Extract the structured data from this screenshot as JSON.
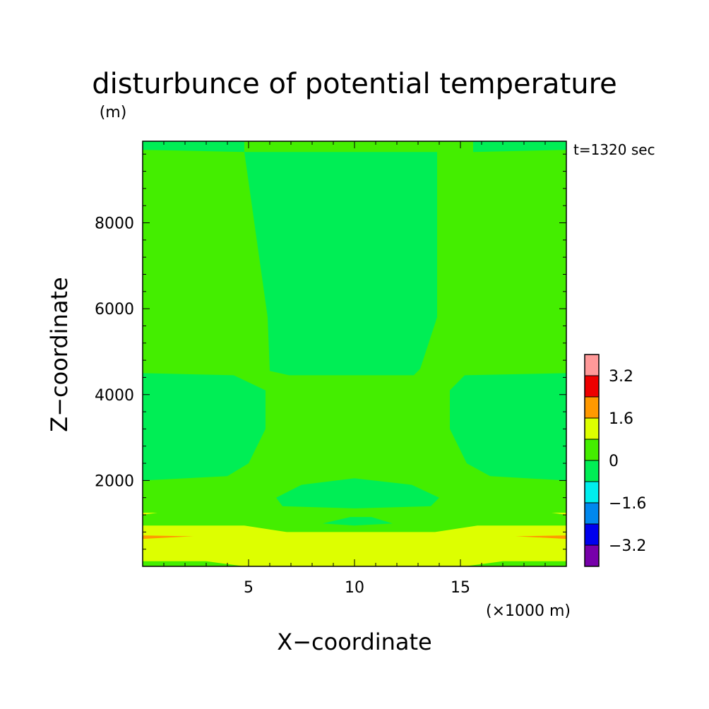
{
  "chart_data": {
    "type": "heatmap",
    "title": "disturbunce of potential temperature",
    "y_unit": "(m)",
    "x_unit": "(×1000 m)",
    "xlabel": "X−coordinate",
    "ylabel": "Z−coordinate",
    "time_label": "t=1320 sec",
    "xlim": [
      0,
      20
    ],
    "ylim": [
      0,
      9900
    ],
    "x_ticks": [
      5,
      10,
      15
    ],
    "x_tick_labels": [
      "5",
      "10",
      "15"
    ],
    "y_ticks": [
      2000,
      4000,
      6000,
      8000
    ],
    "y_tick_labels": [
      "2000",
      "4000",
      "6000",
      "8000"
    ],
    "colorbar": {
      "levels": [
        {
          "lo": -4.0,
          "hi": -3.2,
          "color": "#7700aa"
        },
        {
          "lo": -3.2,
          "hi": -2.4,
          "color": "#0000ee"
        },
        {
          "lo": -2.4,
          "hi": -1.6,
          "color": "#0088ee"
        },
        {
          "lo": -1.6,
          "hi": -0.8,
          "color": "#00eeee"
        },
        {
          "lo": -0.8,
          "hi": 0.0,
          "color": "#00ee55"
        },
        {
          "lo": 0.0,
          "hi": 0.8,
          "color": "#44ee00"
        },
        {
          "lo": 0.8,
          "hi": 1.6,
          "color": "#ddff00"
        },
        {
          "lo": 1.6,
          "hi": 2.4,
          "color": "#ff9900"
        },
        {
          "lo": 2.4,
          "hi": 3.2,
          "color": "#ee0000"
        },
        {
          "lo": 3.2,
          "hi": 4.0,
          "color": "#ff9999"
        }
      ],
      "tick_labels": [
        "3.2",
        "1.6",
        "0",
        "−1.6",
        "−3.2"
      ]
    },
    "regions": [
      {
        "level": "0.0 to 0.8",
        "color": "#44ee00",
        "desc": "background"
      },
      {
        "level": "-0.8 to 0.0",
        "color": "#00ee55",
        "desc": "upper central column",
        "polygon": [
          [
            4.8,
            9650
          ],
          [
            13.9,
            9650
          ],
          [
            13.9,
            5800
          ],
          [
            13.1,
            4600
          ],
          [
            12.8,
            4450
          ],
          [
            6.9,
            4450
          ],
          [
            6.0,
            4550
          ],
          [
            5.9,
            5800
          ],
          [
            4.8,
            9650
          ]
        ]
      },
      {
        "level": "-0.8 to 0.0",
        "color": "#00ee55",
        "desc": "upper left strip",
        "polygon": [
          [
            0,
            9900
          ],
          [
            4.8,
            9900
          ],
          [
            4.8,
            9650
          ],
          [
            0,
            9700
          ]
        ]
      },
      {
        "level": "-0.8 to 0.0",
        "color": "#00ee55",
        "desc": "upper right strip",
        "polygon": [
          [
            15.6,
            9650
          ],
          [
            20,
            9700
          ],
          [
            20,
            9900
          ],
          [
            15.6,
            9900
          ]
        ]
      },
      {
        "level": "-0.8 to 0.0",
        "color": "#00ee55",
        "desc": "left mid lobe",
        "polygon": [
          [
            0,
            4500
          ],
          [
            4.3,
            4450
          ],
          [
            5.8,
            4100
          ],
          [
            5.8,
            3200
          ],
          [
            5.0,
            2400
          ],
          [
            4.0,
            2100
          ],
          [
            0,
            2000
          ]
        ]
      },
      {
        "level": "-0.8 to 0.0",
        "color": "#00ee55",
        "desc": "right mid lobe",
        "polygon": [
          [
            20,
            4500
          ],
          [
            15.2,
            4450
          ],
          [
            14.5,
            4100
          ],
          [
            14.5,
            3200
          ],
          [
            15.3,
            2400
          ],
          [
            16.4,
            2100
          ],
          [
            20,
            2000
          ]
        ]
      },
      {
        "level": "-0.8 to 0.0",
        "color": "#00ee55",
        "desc": "central lower lens",
        "polygon": [
          [
            6.3,
            1600
          ],
          [
            7.5,
            1900
          ],
          [
            10.0,
            2050
          ],
          [
            12.7,
            1900
          ],
          [
            14.0,
            1600
          ],
          [
            13.6,
            1400
          ],
          [
            10.0,
            1350
          ],
          [
            6.6,
            1400
          ]
        ]
      },
      {
        "level": "-0.8 to 0.0",
        "color": "#00ee55",
        "desc": "small lens",
        "polygon": [
          [
            8.5,
            1000
          ],
          [
            9.8,
            1150
          ],
          [
            10.8,
            1150
          ],
          [
            11.8,
            1000
          ],
          [
            10.0,
            950
          ]
        ]
      },
      {
        "level": "0.8 to 1.6",
        "color": "#ddff00",
        "desc": "lower layer",
        "polygon": [
          [
            0,
            950
          ],
          [
            4.8,
            950
          ],
          [
            6.8,
            800
          ],
          [
            13.8,
            800
          ],
          [
            15.8,
            950
          ],
          [
            20,
            950
          ],
          [
            20,
            0
          ],
          [
            0,
            0
          ]
        ]
      },
      {
        "level": "0.8 to 1.6",
        "color": "#ddff00",
        "desc": "left sliver",
        "polygon": [
          [
            0,
            1250
          ],
          [
            0.7,
            1250
          ],
          [
            0,
            1200
          ]
        ]
      },
      {
        "level": "0.8 to 1.6",
        "color": "#ddff00",
        "desc": "right sliver",
        "polygon": [
          [
            20,
            1250
          ],
          [
            19.3,
            1250
          ],
          [
            20,
            1200
          ]
        ]
      },
      {
        "level": "1.6 to 2.4",
        "color": "#ff9900",
        "desc": "left warm line",
        "polygon": [
          [
            0,
            720
          ],
          [
            2.4,
            700
          ],
          [
            0,
            640
          ]
        ]
      },
      {
        "level": "1.6 to 2.4",
        "color": "#ff9900",
        "desc": "right warm line",
        "polygon": [
          [
            20,
            720
          ],
          [
            17.6,
            700
          ],
          [
            20,
            640
          ]
        ]
      },
      {
        "level": "0.0 to 0.8",
        "color": "#44ee00",
        "desc": "bottom left band",
        "polygon": [
          [
            0,
            0
          ],
          [
            4.8,
            0
          ],
          [
            3.0,
            120
          ],
          [
            0,
            120
          ]
        ]
      },
      {
        "level": "0.0 to 0.8",
        "color": "#44ee00",
        "desc": "bottom right band",
        "polygon": [
          [
            20,
            0
          ],
          [
            15.2,
            0
          ],
          [
            17.0,
            120
          ],
          [
            20,
            120
          ]
        ]
      }
    ]
  }
}
